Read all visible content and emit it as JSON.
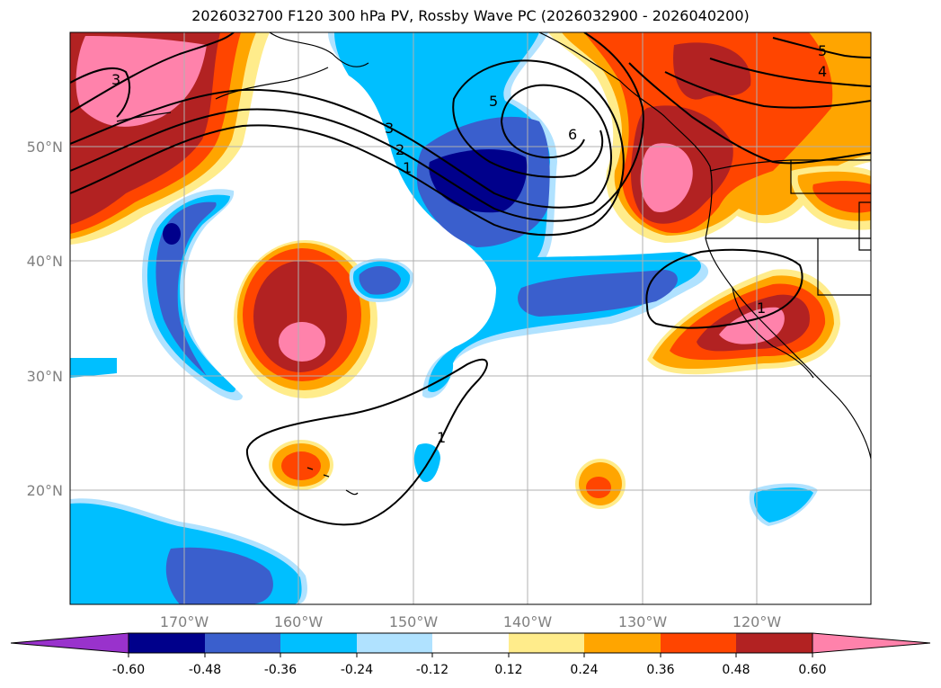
{
  "title": "2026032700 F120 300 hPa PV, Rossby Wave PC (2026032900 - 2026040200)",
  "map": {
    "lon_range": [
      -180,
      -110
    ],
    "lat_range": [
      10,
      60
    ],
    "lon_ticks": [
      -170,
      -160,
      -150,
      -140,
      -130,
      -120
    ],
    "lon_labels": [
      "170°W",
      "160°W",
      "150°W",
      "140°W",
      "130°W",
      "120°W"
    ],
    "lat_ticks": [
      20,
      30,
      40,
      50
    ],
    "lat_labels": [
      "20°N",
      "30°N",
      "40°N",
      "50°N"
    ]
  },
  "colorbar": {
    "levels": [
      "-0.60",
      "-0.48",
      "-0.36",
      "-0.24",
      "-0.12",
      "0.12",
      "0.24",
      "0.36",
      "0.48",
      "0.60"
    ],
    "colors": [
      "#9932cc",
      "#00008b",
      "#3a5fcd",
      "#00bfff",
      "#b0e2ff",
      "#ffffff",
      "#ffec8b",
      "#ffa500",
      "#ff4500",
      "#b22222",
      "#ff82ab"
    ]
  },
  "contour_labels": [
    "1",
    "1",
    "1",
    "2",
    "3",
    "3",
    "4",
    "5",
    "5",
    "6"
  ]
}
